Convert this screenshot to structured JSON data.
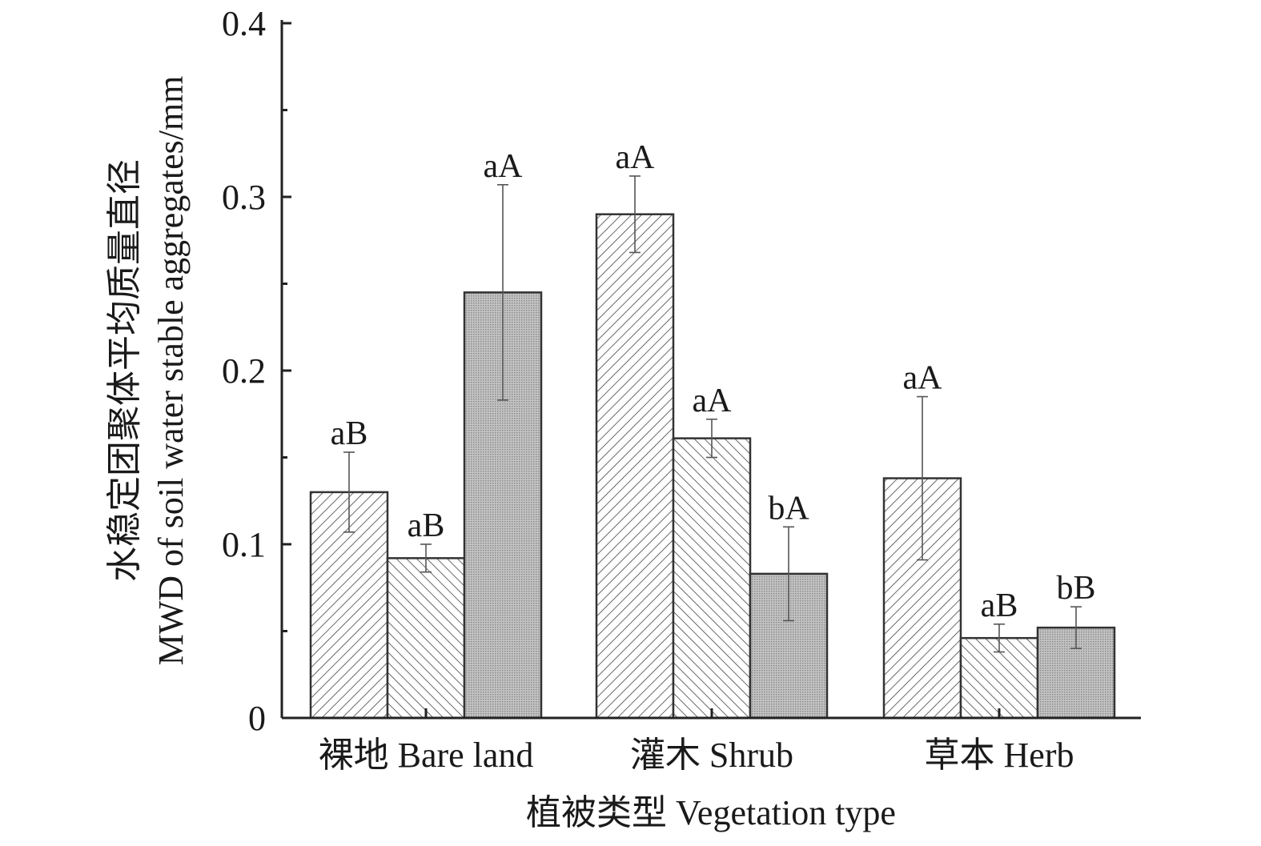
{
  "chart_data": {
    "type": "bar",
    "title": "",
    "xlabel": "植被类型 Vegetation type",
    "ylabel_lines": [
      "水稳定团聚体平均质量直径",
      "MWD of soil water stable aggregates/mm"
    ],
    "ylim": [
      0,
      0.4
    ],
    "y_ticks": [
      0,
      0.1,
      0.2,
      0.3,
      0.4
    ],
    "y_tick_labels": [
      "0",
      "0.1",
      "0.2",
      "0.3",
      "0.4"
    ],
    "grid": false,
    "legend": "none",
    "categories": [
      "裸地 Bare land",
      "灌木 Shrub",
      "草本 Herb"
    ],
    "series": [
      {
        "pattern": "diag-up",
        "values": [
          0.13,
          0.29,
          0.138
        ],
        "errors": [
          0.023,
          0.022,
          0.047
        ],
        "labels": [
          "aB",
          "aA",
          "aA"
        ]
      },
      {
        "pattern": "diag-down",
        "values": [
          0.092,
          0.161,
          0.046
        ],
        "errors": [
          0.008,
          0.011,
          0.008
        ],
        "labels": [
          "aB",
          "aA",
          "aB"
        ]
      },
      {
        "pattern": "dense-grid",
        "values": [
          0.245,
          0.083,
          0.052
        ],
        "errors": [
          0.062,
          0.027,
          0.012
        ],
        "labels": [
          "aA",
          "bA",
          "bB"
        ]
      }
    ],
    "colors": {
      "axis": "#222222",
      "bar_stroke": "#333333",
      "error_bar": "#555555",
      "hatch": "#444444",
      "dense_fill": "#b0b0b0"
    }
  }
}
